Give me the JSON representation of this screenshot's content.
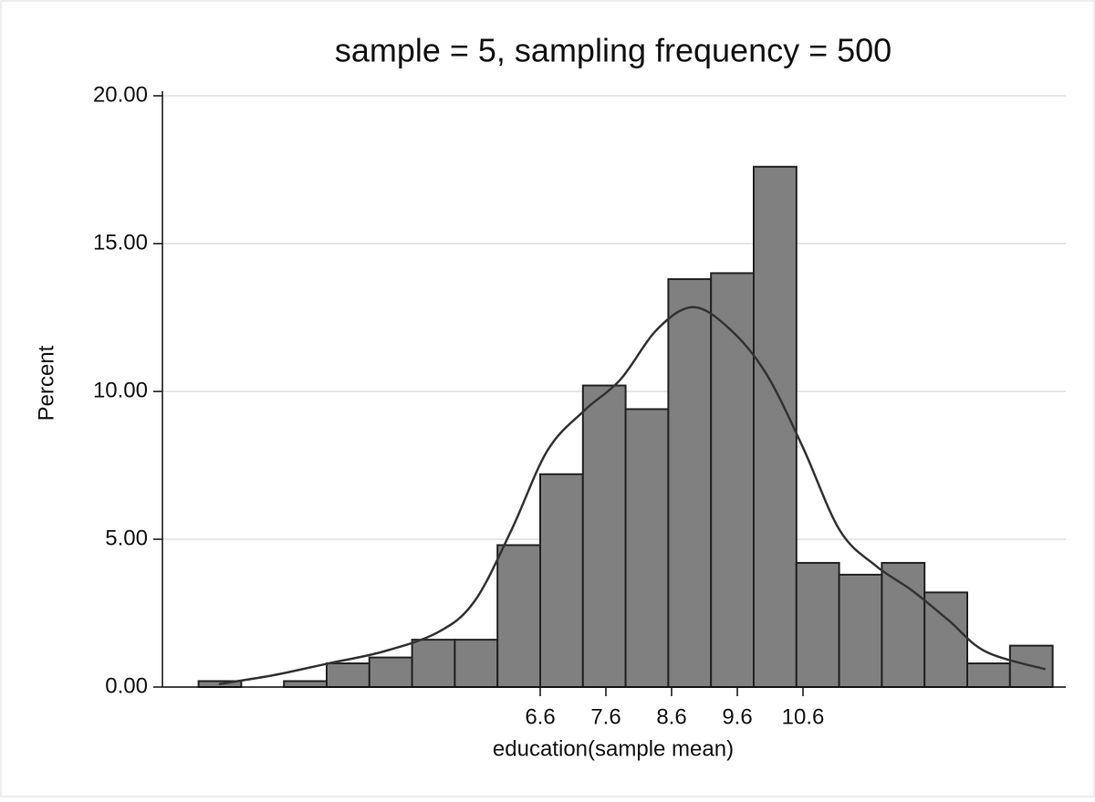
{
  "chart_data": {
    "type": "histogram",
    "title": "sample = 5, sampling frequency = 500",
    "xlabel": "education(sample mean)",
    "ylabel": "Percent",
    "bins": [
      1.4,
      2.05,
      2.7,
      3.35,
      4.0,
      4.65,
      5.3,
      5.95,
      6.6,
      7.25,
      7.9,
      8.55,
      9.2,
      9.85,
      10.5,
      11.15,
      11.8,
      12.45,
      13.1,
      13.75,
      14.4
    ],
    "values": [
      0.2,
      0,
      0.2,
      0.8,
      1.0,
      1.6,
      1.6,
      4.8,
      7.2,
      10.2,
      9.4,
      13.8,
      14.0,
      17.6,
      4.2,
      3.8,
      4.2,
      3.2,
      0.8,
      1.4
    ],
    "color": "#808080",
    "curve": {
      "color": "#333333",
      "x": [
        1.71,
        2.54,
        3.38,
        4.21,
        5.04,
        5.6,
        6.16,
        6.71,
        7.27,
        7.82,
        8.38,
        8.93,
        9.49,
        10.04,
        10.6,
        11.16,
        11.71,
        12.27,
        12.82,
        13.38,
        14.29
      ],
      "values": [
        0.1,
        0.4,
        0.8,
        1.2,
        1.85,
        2.9,
        5.3,
        8.0,
        9.35,
        10.4,
        12.1,
        12.85,
        12.1,
        10.6,
        8.1,
        5.3,
        4.1,
        3.25,
        2.25,
        1.2,
        0.6
      ]
    },
    "xlim": [
      0.85,
      14.6
    ],
    "ylim": [
      0,
      20
    ],
    "xticks": [
      6.6,
      7.6,
      8.6,
      9.6,
      10.6
    ],
    "yticks": [
      {
        "value": 0,
        "label": "0.00"
      },
      {
        "value": 5,
        "label": "5.00"
      },
      {
        "value": 10,
        "label": "10.00"
      },
      {
        "value": 15,
        "label": "15.00"
      },
      {
        "value": 20,
        "label": "20.00"
      }
    ],
    "grid": true
  }
}
